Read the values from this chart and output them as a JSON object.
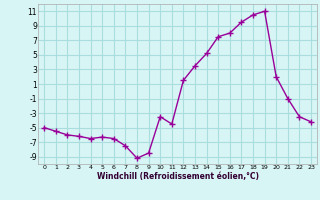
{
  "hours": [
    0,
    1,
    2,
    3,
    4,
    5,
    6,
    7,
    8,
    9,
    10,
    11,
    12,
    13,
    14,
    15,
    16,
    17,
    18,
    19,
    20,
    21,
    22,
    23
  ],
  "values": [
    -5.0,
    -5.5,
    -6.0,
    -6.2,
    -6.5,
    -6.3,
    -6.5,
    -7.5,
    -9.2,
    -8.5,
    -3.5,
    -4.5,
    1.5,
    3.5,
    5.2,
    7.5,
    8.0,
    9.5,
    10.5,
    11.0,
    2.0,
    -1.0,
    -3.5,
    -4.2
  ],
  "line_color": "#990099",
  "bg_color": "#d8f5f5",
  "grid_color": "#aadddd",
  "xlabel": "Windchill (Refroidissement éolien,°C)",
  "ylim": [
    -10,
    12
  ],
  "yticks": [
    -9,
    -7,
    -5,
    -3,
    -1,
    1,
    3,
    5,
    7,
    9,
    11
  ],
  "xticks": [
    0,
    1,
    2,
    3,
    4,
    5,
    6,
    7,
    8,
    9,
    10,
    11,
    12,
    13,
    14,
    15,
    16,
    17,
    18,
    19,
    20,
    21,
    22,
    23
  ]
}
